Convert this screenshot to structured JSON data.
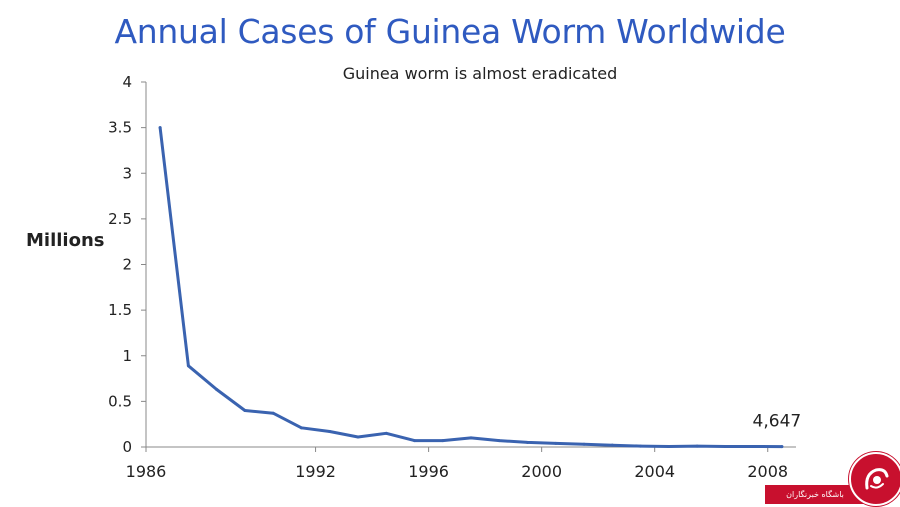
{
  "chart_data": {
    "type": "line",
    "title": "Annual Cases of Guinea Worm Worldwide",
    "subtitle": "Guinea worm is almost eradicated",
    "ylabel": "Millions",
    "xlabel": "",
    "xlim": [
      1986,
      2009
    ],
    "ylim": [
      0,
      4
    ],
    "x_ticks": [
      "1986",
      "1992",
      "1996",
      "2000",
      "2004",
      "2008"
    ],
    "y_ticks": [
      "0",
      "0.5",
      "1",
      "1.5",
      "2",
      "2.5",
      "3",
      "3.5",
      "4"
    ],
    "series": [
      {
        "color": "#3a63b0",
        "points": [
          {
            "x": 1986.5,
            "y": 3.5
          },
          {
            "x": 1987.5,
            "y": 0.89
          },
          {
            "x": 1988.5,
            "y": 0.63
          },
          {
            "x": 1989.5,
            "y": 0.4
          },
          {
            "x": 1990.5,
            "y": 0.37
          },
          {
            "x": 1991.5,
            "y": 0.21
          },
          {
            "x": 1992.5,
            "y": 0.17
          },
          {
            "x": 1993.5,
            "y": 0.11
          },
          {
            "x": 1994.5,
            "y": 0.15
          },
          {
            "x": 1995.5,
            "y": 0.07
          },
          {
            "x": 1996.5,
            "y": 0.07
          },
          {
            "x": 1997.5,
            "y": 0.1
          },
          {
            "x": 1998.5,
            "y": 0.07
          },
          {
            "x": 1999.5,
            "y": 0.05
          },
          {
            "x": 2000.5,
            "y": 0.04
          },
          {
            "x": 2001.5,
            "y": 0.03
          },
          {
            "x": 2002.5,
            "y": 0.02
          },
          {
            "x": 2003.5,
            "y": 0.01
          },
          {
            "x": 2004.5,
            "y": 0.005
          },
          {
            "x": 2005.5,
            "y": 0.01
          },
          {
            "x": 2006.5,
            "y": 0.006
          },
          {
            "x": 2007.5,
            "y": 0.005
          },
          {
            "x": 2008.5,
            "y": 0.004647
          }
        ]
      }
    ],
    "annotations": [
      {
        "text": "4,647",
        "x": 2008.5,
        "y": 0.004647
      }
    ],
    "grid": false,
    "legend": "none"
  },
  "watermark": {
    "text": "باشگاه خبرنگاران",
    "brand_color": "#c8102e"
  }
}
